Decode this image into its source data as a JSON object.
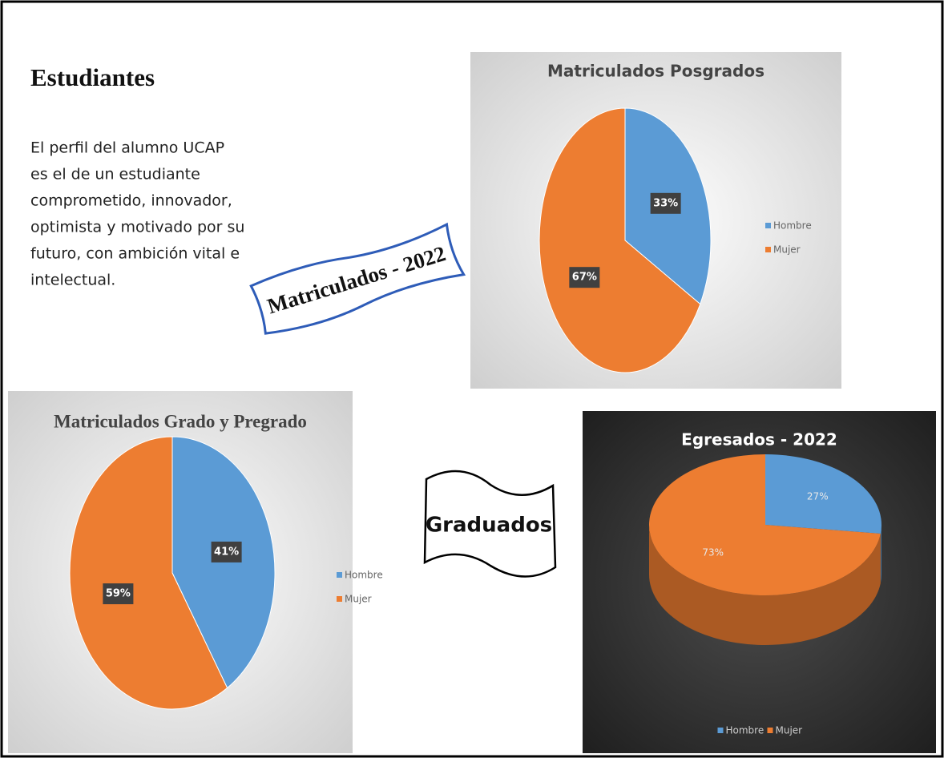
{
  "heading": "Estudiantes",
  "paragraph": [
    "El perfil del alumno UCAP",
    "es el de un estudiante",
    "comprometido, innovador,",
    "optimista y motivado por su",
    "futuro, con ambición vital e",
    "intelectual."
  ],
  "banners": [
    "Matriculados - 2022",
    "Graduados"
  ],
  "chart_data": [
    {
      "type": "pie",
      "title": "Matriculados Posgrados",
      "categories": [
        "Hombre",
        "Mujer"
      ],
      "values": [
        33,
        67
      ],
      "value_labels": [
        "33%",
        "67%"
      ],
      "colors": [
        "#5b9bd5",
        "#ed7d31"
      ],
      "legend": "right",
      "theme": "light"
    },
    {
      "type": "pie",
      "title": "Matriculados Grado y Pregrado",
      "categories": [
        "Hombre",
        "Mujer"
      ],
      "values": [
        41,
        59
      ],
      "value_labels": [
        "41%",
        "59%"
      ],
      "colors": [
        "#5b9bd5",
        "#ed7d31"
      ],
      "legend": "right",
      "theme": "light"
    },
    {
      "type": "pie3d",
      "title": "Egresados - 2022",
      "categories": [
        "Hombre",
        "Mujer"
      ],
      "values": [
        27,
        73
      ],
      "value_labels": [
        "27%",
        "73%"
      ],
      "colors": [
        "#5b9bd5",
        "#ed7d31"
      ],
      "legend": "bottom",
      "theme": "dark"
    }
  ]
}
